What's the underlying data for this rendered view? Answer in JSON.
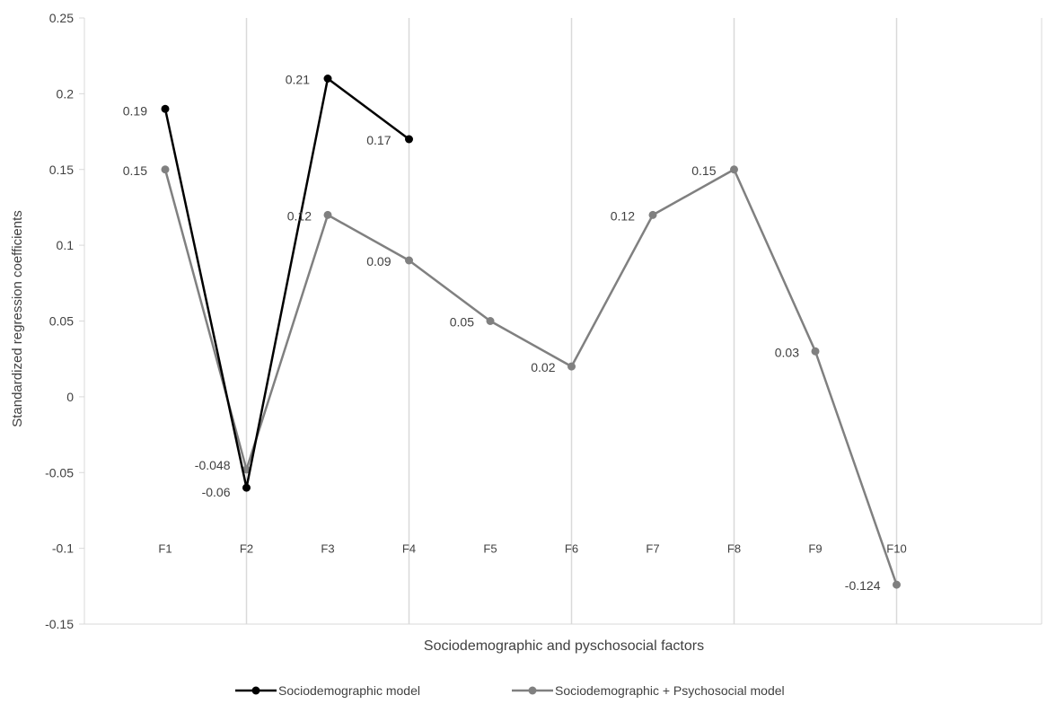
{
  "chart_data": {
    "type": "line",
    "title": "",
    "xlabel": "Sociodemographic and pyschosocial factors",
    "ylabel": "Standardized regression coefficients",
    "ylim": [
      -0.15,
      0.25
    ],
    "yticks": [
      "-0.15",
      "-0.1",
      "-0.05",
      "0",
      "0.05",
      "0.1",
      "0.15",
      "0.2",
      "0.25"
    ],
    "grid": true,
    "legend_position": "bottom",
    "categories": [
      "F1",
      "F2",
      "F3",
      "F4",
      "F5",
      "F6",
      "F7",
      "F8",
      "F9",
      "F10"
    ],
    "series": [
      {
        "name": "Sociodemographic model",
        "color": "#000000",
        "values": [
          0.19,
          -0.06,
          0.21,
          0.17,
          null,
          null,
          null,
          null,
          null,
          null
        ],
        "labels": [
          "0.19",
          "-0.06",
          "0.21",
          "0.17",
          "",
          "",
          "",
          "",
          "",
          ""
        ]
      },
      {
        "name": "Sociodemographic + Psychosocial model",
        "color": "#808080",
        "values": [
          0.15,
          -0.048,
          0.12,
          0.09,
          0.05,
          0.02,
          0.12,
          0.15,
          0.03,
          -0.124
        ],
        "labels": [
          "0.15",
          "-0.048",
          "0.12",
          "0.09",
          "0.05",
          "0.02",
          "0.12",
          "0.15",
          "0.03",
          "-0.124"
        ]
      }
    ]
  }
}
